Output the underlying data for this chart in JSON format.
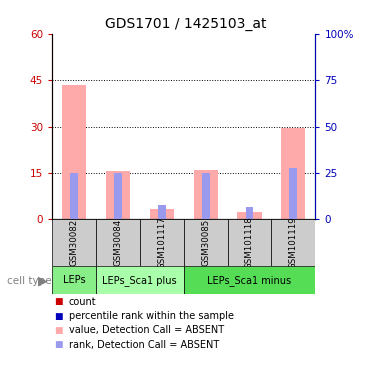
{
  "title": "GDS1701 / 1425103_at",
  "samples": [
    "GSM30082",
    "GSM30084",
    "GSM101117",
    "GSM30085",
    "GSM101118",
    "GSM101119"
  ],
  "pink_bars": [
    43.5,
    15.5,
    3.5,
    15.8,
    2.5,
    29.5
  ],
  "blue_bars_pct": [
    25.0,
    25.0,
    7.5,
    25.0,
    6.5,
    27.5
  ],
  "ylim_left": [
    0,
    60
  ],
  "ylim_right": [
    0,
    100
  ],
  "yticks_left": [
    0,
    15,
    30,
    45,
    60
  ],
  "yticks_right": [
    0,
    25,
    50,
    75,
    100
  ],
  "ytick_labels_left": [
    "0",
    "15",
    "30",
    "45",
    "60"
  ],
  "ytick_labels_right": [
    "0",
    "25",
    "50",
    "75",
    "100%"
  ],
  "left_color": "#cc0000",
  "right_color": "#0000bb",
  "pink_color": "#ffaaaa",
  "blue_color": "#9999ee",
  "red_dot_color": "#cc0000",
  "cell_type_groups": [
    {
      "label": "LEPs",
      "start": 0,
      "end": 1,
      "color": "#88ee88"
    },
    {
      "label": "LEPs_Sca1 plus",
      "start": 1,
      "end": 3,
      "color": "#aaffaa"
    },
    {
      "label": "LEPs_Sca1 minus",
      "start": 3,
      "end": 6,
      "color": "#55dd55"
    }
  ],
  "legend_items": [
    {
      "label": "count",
      "color": "#cc0000"
    },
    {
      "label": "percentile rank within the sample",
      "color": "#0000bb"
    },
    {
      "label": "value, Detection Call = ABSENT",
      "color": "#ffaaaa"
    },
    {
      "label": "rank, Detection Call = ABSENT",
      "color": "#9999ee"
    }
  ],
  "tick_fontsize": 7.5,
  "title_fontsize": 10,
  "cell_type_label": "cell type"
}
